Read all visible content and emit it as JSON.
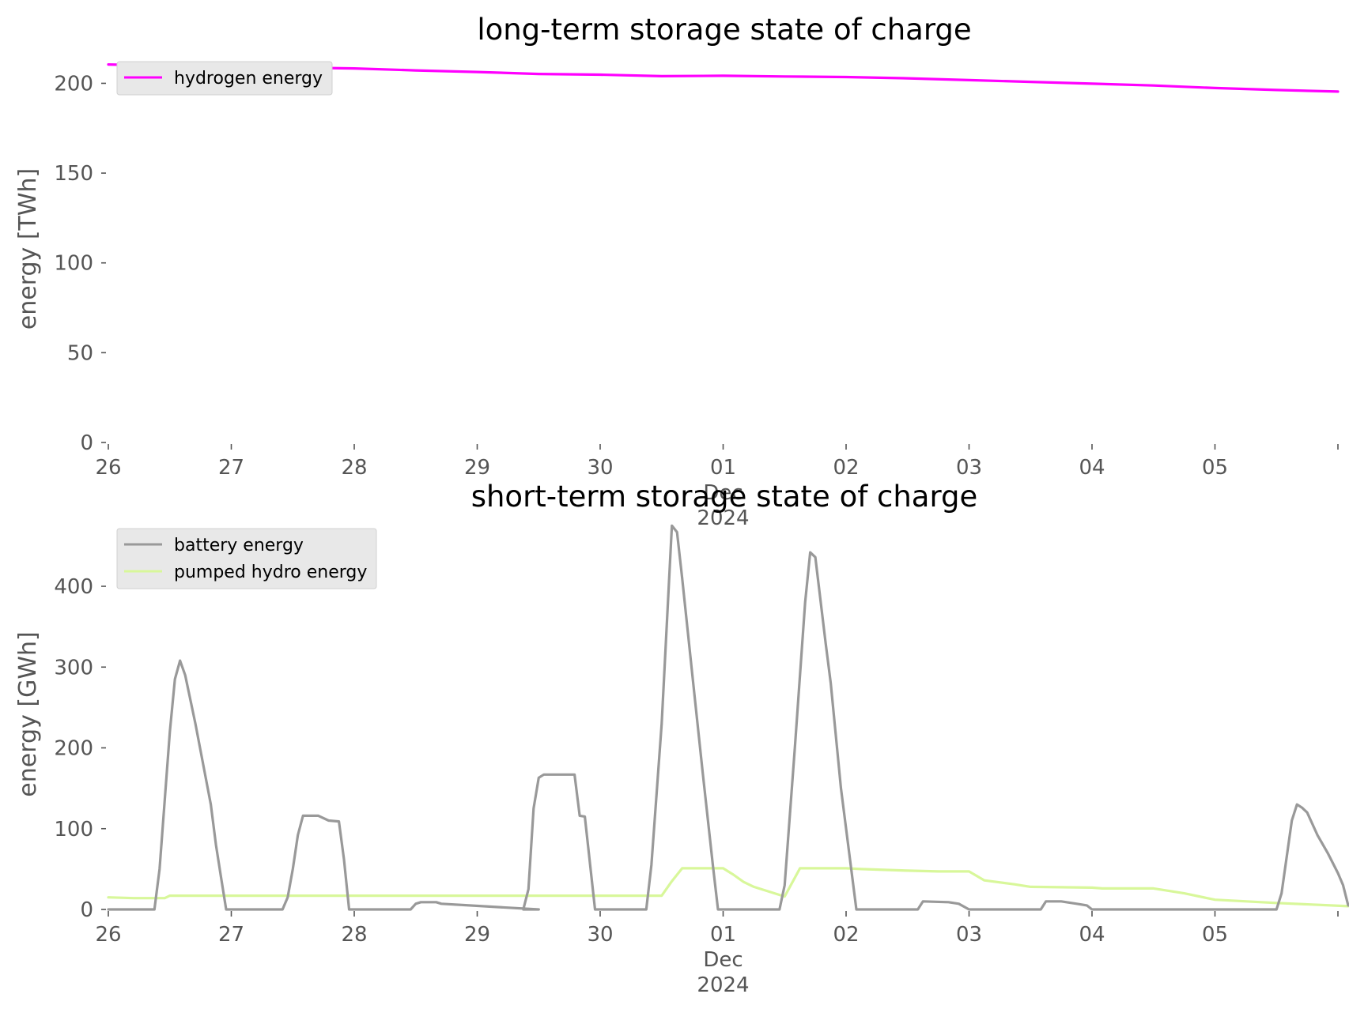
{
  "chart_data": [
    {
      "type": "line",
      "title": "long-term storage state of charge",
      "xlabel": "",
      "ylabel": "energy [TWh]",
      "xlim": [
        "2024-11-26",
        "2024-12-06"
      ],
      "ylim": [
        0,
        220
      ],
      "yticks": [
        "0",
        "50",
        "100",
        "150",
        "200"
      ],
      "xticks": [
        "26",
        "27",
        "28",
        "29",
        "30",
        "01\nDec\n2024",
        "02",
        "03",
        "04",
        "05",
        ""
      ],
      "grid": false,
      "legend_position": "upper-left",
      "series": [
        {
          "name": "hydrogen energy",
          "color": "#ff00ff",
          "points": [
            [
              "2024-11-26",
              210.5
            ],
            [
              "2024-11-26T12",
              209.8
            ],
            [
              "2024-11-27",
              209.2
            ],
            [
              "2024-11-27T12",
              208.8
            ],
            [
              "2024-11-28",
              208.3
            ],
            [
              "2024-11-28T12",
              207.2
            ],
            [
              "2024-11-29",
              206.3
            ],
            [
              "2024-11-29T12",
              205.2
            ],
            [
              "2024-11-30",
              204.8
            ],
            [
              "2024-11-30T12",
              204.0
            ],
            [
              "2024-12-01",
              204.2
            ],
            [
              "2024-12-01T12",
              203.8
            ],
            [
              "2024-12-02",
              203.5
            ],
            [
              "2024-12-02T12",
              202.8
            ],
            [
              "2024-12-03",
              201.8
            ],
            [
              "2024-12-03T12",
              200.8
            ],
            [
              "2024-12-04",
              199.8
            ],
            [
              "2024-12-04T12",
              198.8
            ],
            [
              "2024-12-05",
              197.4
            ],
            [
              "2024-12-05T12",
              196.3
            ],
            [
              "2024-12-06",
              195.4
            ]
          ]
        }
      ]
    },
    {
      "type": "line",
      "title": "short-term storage state of charge",
      "xlabel": "",
      "ylabel": "energy [GWh]",
      "xlim": [
        "2024-11-26",
        "2024-12-06"
      ],
      "ylim": [
        0,
        490
      ],
      "yticks": [
        "0",
        "100",
        "200",
        "300",
        "400"
      ],
      "xticks": [
        "26",
        "27",
        "28",
        "29",
        "30",
        "01\nDec\n2024",
        "02",
        "03",
        "04",
        "05",
        ""
      ],
      "grid": false,
      "legend_position": "upper-left",
      "series": [
        {
          "name": "battery energy",
          "color": "#999999",
          "points": [
            [
              "2024-11-26T00",
              0
            ],
            [
              "2024-11-26T09",
              0
            ],
            [
              "2024-11-26T10",
              50
            ],
            [
              "2024-11-26T12",
              220
            ],
            [
              "2024-11-26T13",
              285
            ],
            [
              "2024-11-26T14",
              308
            ],
            [
              "2024-11-26T15",
              290
            ],
            [
              "2024-11-26T17",
              230
            ],
            [
              "2024-11-26T20",
              130
            ],
            [
              "2024-11-26T21",
              80
            ],
            [
              "2024-11-26T22",
              40
            ],
            [
              "2024-11-26T23",
              0
            ],
            [
              "2024-11-27T10",
              0
            ],
            [
              "2024-11-27T11",
              15
            ],
            [
              "2024-11-27T12",
              50
            ],
            [
              "2024-11-27T13",
              92
            ],
            [
              "2024-11-27T14",
              116
            ],
            [
              "2024-11-27T17",
              116
            ],
            [
              "2024-11-27T19",
              110
            ],
            [
              "2024-11-27T21",
              109
            ],
            [
              "2024-11-27T22",
              62
            ],
            [
              "2024-11-27T23",
              0
            ],
            [
              "2024-11-28T11",
              0
            ],
            [
              "2024-11-28T12",
              7
            ],
            [
              "2024-11-28T13",
              9
            ],
            [
              "2024-11-28T16",
              9
            ],
            [
              "2024-11-28T17",
              7
            ],
            [
              "2024-11-29T12",
              0
            ],
            [
              "2024-11-29T09",
              0
            ],
            [
              "2024-11-29T10",
              25
            ],
            [
              "2024-11-29T11",
              125
            ],
            [
              "2024-11-29T12",
              163
            ],
            [
              "2024-11-29T13",
              167
            ],
            [
              "2024-11-29T19",
              167
            ],
            [
              "2024-11-29T20",
              116
            ],
            [
              "2024-11-29T21",
              115
            ],
            [
              "2024-11-29T23",
              0
            ],
            [
              "2024-11-30T09",
              0
            ],
            [
              "2024-11-30T10",
              55
            ],
            [
              "2024-11-30T12",
              230
            ],
            [
              "2024-11-30T14",
              475
            ],
            [
              "2024-11-30T15",
              467
            ],
            [
              "2024-11-30T16",
              410
            ],
            [
              "2024-11-30T18",
              290
            ],
            [
              "2024-11-30T20",
              170
            ],
            [
              "2024-11-30T22",
              55
            ],
            [
              "2024-11-30T23",
              0
            ],
            [
              "2024-12-01T11",
              0
            ],
            [
              "2024-12-01T12",
              30
            ],
            [
              "2024-12-01T14",
              200
            ],
            [
              "2024-12-01T16",
              380
            ],
            [
              "2024-12-01T17",
              442
            ],
            [
              "2024-12-01T18",
              436
            ],
            [
              "2024-12-01T20",
              330
            ],
            [
              "2024-12-01T21",
              280
            ],
            [
              "2024-12-01T23",
              150
            ],
            [
              "2024-12-02T02",
              0
            ],
            [
              "2024-12-02T14",
              0
            ],
            [
              "2024-12-02T15",
              10
            ],
            [
              "2024-12-02T20",
              9
            ],
            [
              "2024-12-02T22",
              7
            ],
            [
              "2024-12-03T00",
              0
            ],
            [
              "2024-12-03T14",
              0
            ],
            [
              "2024-12-03T15",
              10
            ],
            [
              "2024-12-03T18",
              10
            ],
            [
              "2024-12-03T21",
              7
            ],
            [
              "2024-12-03T23",
              5
            ],
            [
              "2024-12-04T00",
              0
            ],
            [
              "2024-12-05T12",
              0
            ],
            [
              "2024-12-05T13",
              20
            ],
            [
              "2024-12-05T15",
              110
            ],
            [
              "2024-12-05T16",
              130
            ],
            [
              "2024-12-05T17",
              126
            ],
            [
              "2024-12-05T18",
              120
            ],
            [
              "2024-12-05T20",
              92
            ],
            [
              "2024-12-05T22",
              70
            ],
            [
              "2024-12-06T00",
              45
            ],
            [
              "2024-12-06T01",
              30
            ],
            [
              "2024-12-06T02",
              5
            ]
          ]
        },
        {
          "name": "pumped hydro energy",
          "color": "#d8f79a",
          "points": [
            [
              "2024-11-26T00",
              15
            ],
            [
              "2024-11-26T05",
              14
            ],
            [
              "2024-11-26T11",
              14
            ],
            [
              "2024-11-26T12",
              17
            ],
            [
              "2024-11-30T12",
              17
            ],
            [
              "2024-11-30T14",
              35
            ],
            [
              "2024-11-30T16",
              51
            ],
            [
              "2024-12-01T00",
              51
            ],
            [
              "2024-12-01T02",
              43
            ],
            [
              "2024-12-01T04",
              34
            ],
            [
              "2024-12-01T06",
              28
            ],
            [
              "2024-12-01T09",
              22
            ],
            [
              "2024-12-01T12",
              16
            ],
            [
              "2024-12-01T15",
              51
            ],
            [
              "2024-12-02T00",
              51
            ],
            [
              "2024-12-02T03",
              50
            ],
            [
              "2024-12-02T12",
              48
            ],
            [
              "2024-12-02T18",
              47
            ],
            [
              "2024-12-03T00",
              47
            ],
            [
              "2024-12-03T03",
              36
            ],
            [
              "2024-12-03T09",
              31
            ],
            [
              "2024-12-03T12",
              28
            ],
            [
              "2024-12-04T00",
              27
            ],
            [
              "2024-12-04T02",
              26
            ],
            [
              "2024-12-04T12",
              26
            ],
            [
              "2024-12-04T18",
              20
            ],
            [
              "2024-12-05T00",
              12
            ],
            [
              "2024-12-05T12",
              8
            ],
            [
              "2024-12-06T02",
              4
            ]
          ]
        }
      ]
    }
  ]
}
